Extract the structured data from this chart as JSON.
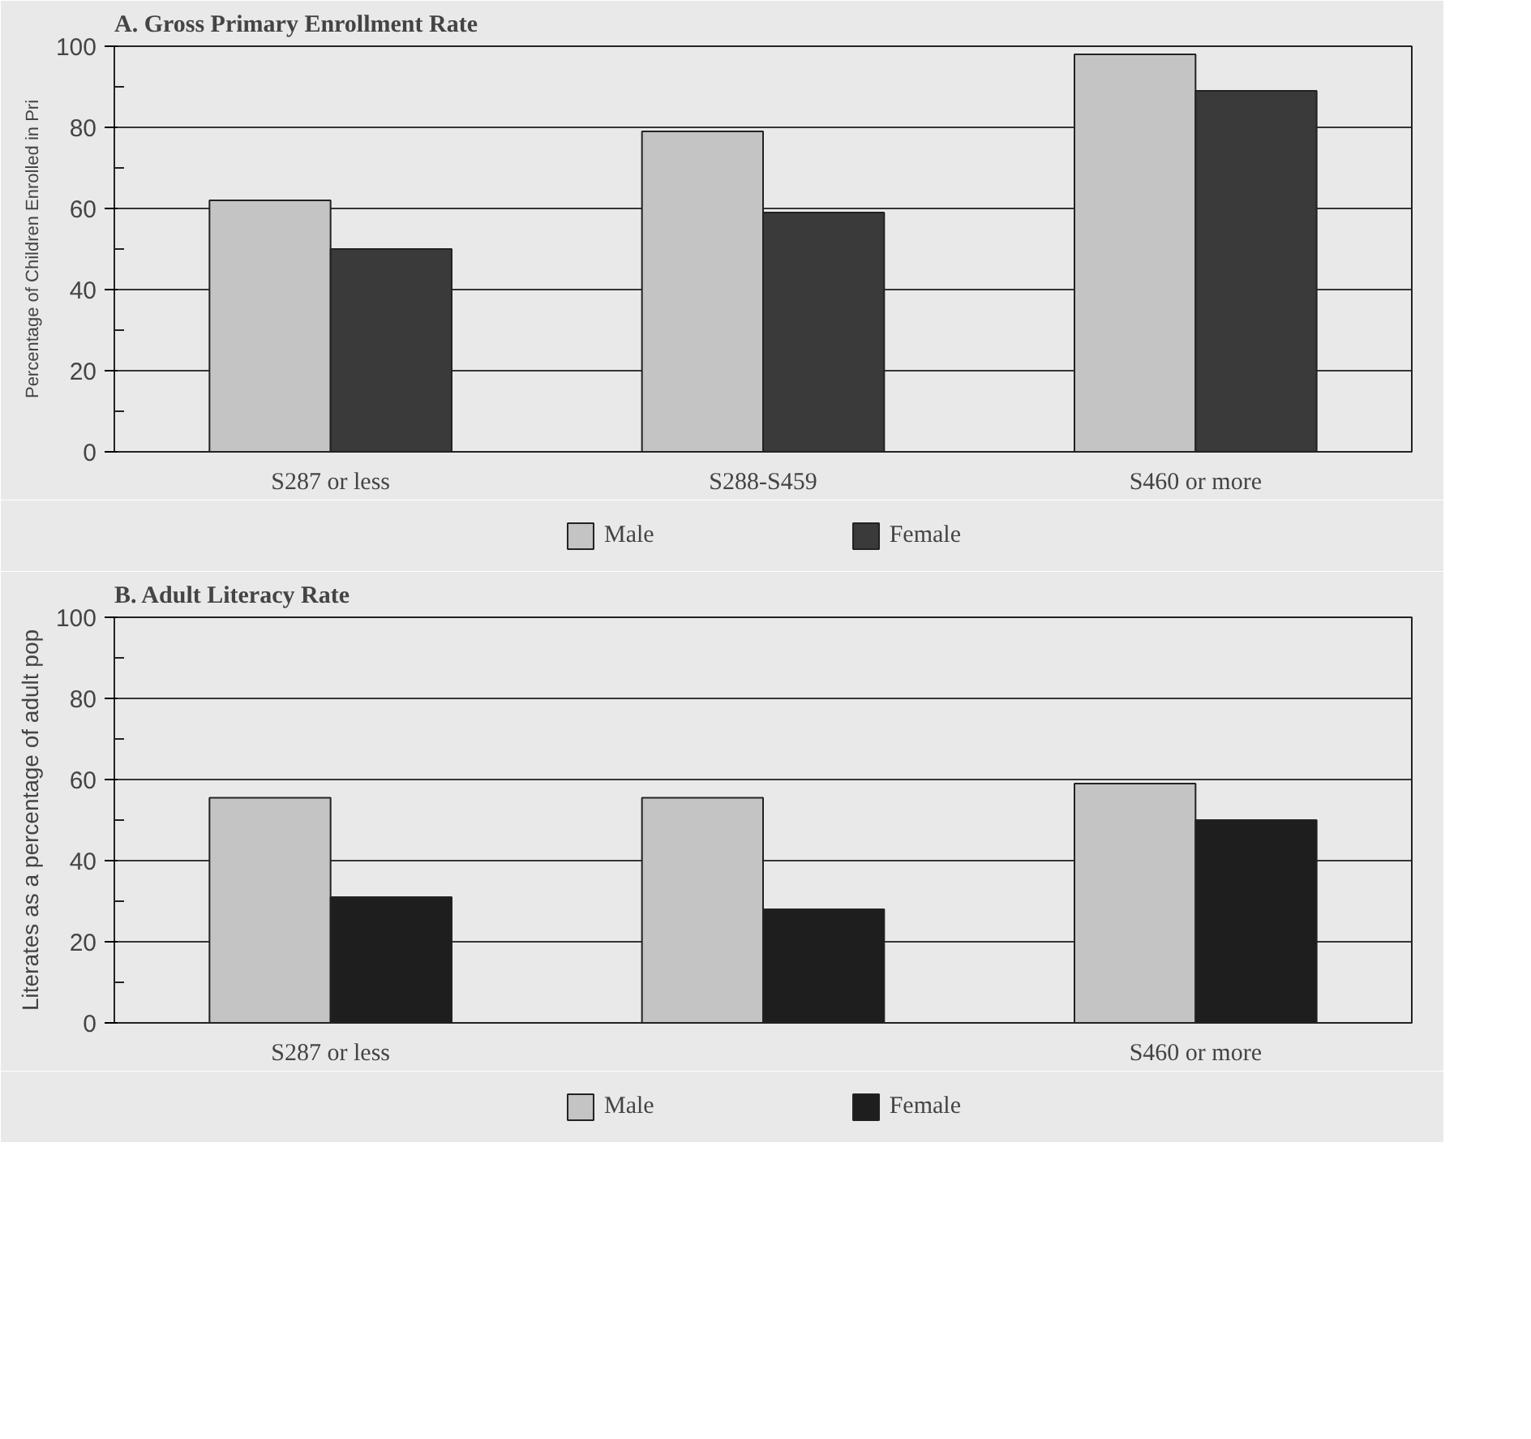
{
  "chart_data": [
    {
      "type": "bar",
      "title": "A. Gross Primary Enrollment Rate",
      "ylabel": "Percentage of Children Enrolled in Pri",
      "categories": [
        "S287 or less",
        "S288-S459",
        "S460 or more"
      ],
      "series": [
        {
          "name": "Male",
          "color": "#c4c4c4",
          "values": [
            62,
            79,
            98
          ]
        },
        {
          "name": "Female",
          "color": "#3a3a3a",
          "values": [
            50,
            59,
            89
          ]
        }
      ],
      "ylim": [
        0,
        100
      ],
      "yticks": [
        0,
        {
          "value": 10,
          "label": null
        },
        20,
        {
          "value": 30,
          "label": null
        },
        40,
        {
          "value": 50,
          "label": null
        },
        60,
        {
          "value": 70,
          "label": null
        },
        80,
        {
          "value": 90,
          "label": null
        },
        100
      ],
      "grid": "y",
      "legend": "bottom"
    },
    {
      "type": "bar",
      "title": "B. Adult Literacy Rate",
      "ylabel": "Literates as a percentage of adult pop",
      "categories": [
        "S287 or less",
        null,
        "S460 or more"
      ],
      "series": [
        {
          "name": "Male",
          "color": "#c4c4c4",
          "values": [
            55.5,
            55.5,
            59
          ]
        },
        {
          "name": "Female",
          "color": "#1e1e1e",
          "values": [
            31,
            28,
            50
          ]
        }
      ],
      "ylim": [
        0,
        100
      ],
      "yticks": [
        0,
        {
          "value": 10,
          "label": null
        },
        20,
        {
          "value": 30,
          "label": null
        },
        40,
        {
          "value": 50,
          "label": null
        },
        60,
        {
          "value": 70,
          "label": null
        },
        80,
        {
          "value": 90,
          "label": null
        },
        100
      ],
      "grid": "y",
      "legend": "bottom"
    }
  ]
}
